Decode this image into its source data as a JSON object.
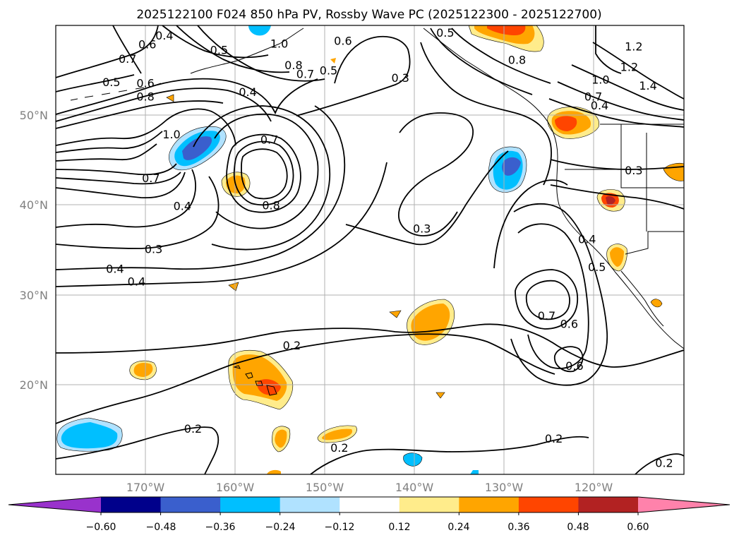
{
  "title": "2025122100 F024 850 hPa PV, Rossby Wave PC (2025122300 - 2025122700)",
  "map": {
    "lon_range": [
      -180,
      -110
    ],
    "lat_range": [
      10,
      60
    ],
    "lon_ticks": [
      {
        "lon": -170,
        "label": "170°W"
      },
      {
        "lon": -160,
        "label": "160°W"
      },
      {
        "lon": -150,
        "label": "150°W"
      },
      {
        "lon": -140,
        "label": "140°W"
      },
      {
        "lon": -130,
        "label": "130°W"
      },
      {
        "lon": -120,
        "label": "120°W"
      }
    ],
    "lat_ticks": [
      {
        "lat": 50,
        "label": "50°N"
      },
      {
        "lat": 40,
        "label": "40°N"
      },
      {
        "lat": 30,
        "label": "30°N"
      },
      {
        "lat": 20,
        "label": "20°N"
      }
    ],
    "grid": true
  },
  "colorbar": {
    "extend": "both",
    "ticks": [
      "−0.60",
      "−0.48",
      "−0.36",
      "−0.24",
      "−0.12",
      "0.12",
      "0.24",
      "0.36",
      "0.48",
      "0.60"
    ],
    "colors": [
      "#9932cc",
      "#00008b",
      "#3a5fcd",
      "#00bfff",
      "#b0e2ff",
      "#ffffff",
      "#ffec8b",
      "#ffa500",
      "#ff4500",
      "#b22222",
      "#ff82ab"
    ]
  },
  "contour_labels": [
    {
      "text": "0.4",
      "lon": -167.9,
      "lat": 58.9
    },
    {
      "text": "0.6",
      "lon": -169.8,
      "lat": 57.9
    },
    {
      "text": "0.7",
      "lon": -172.0,
      "lat": 56.3
    },
    {
      "text": "0.5",
      "lon": -173.8,
      "lat": 53.7
    },
    {
      "text": "0.6",
      "lon": -170.0,
      "lat": 53.6
    },
    {
      "text": "0.8",
      "lon": -170.0,
      "lat": 52.1
    },
    {
      "text": "0.5",
      "lon": -161.8,
      "lat": 57.3
    },
    {
      "text": "0.4",
      "lon": -158.6,
      "lat": 52.6
    },
    {
      "text": "1.0",
      "lon": -167.1,
      "lat": 47.9
    },
    {
      "text": "0.7",
      "lon": -169.4,
      "lat": 43.0
    },
    {
      "text": "0.4",
      "lon": -165.9,
      "lat": 39.9
    },
    {
      "text": "0.7",
      "lon": -156.2,
      "lat": 47.3
    },
    {
      "text": "0.8",
      "lon": -156.0,
      "lat": 40.0
    },
    {
      "text": "1.0",
      "lon": -155.1,
      "lat": 58.0
    },
    {
      "text": "0.8",
      "lon": -153.5,
      "lat": 55.6
    },
    {
      "text": "0.7",
      "lon": -152.2,
      "lat": 54.6
    },
    {
      "text": "0.5",
      "lon": -149.6,
      "lat": 55.0
    },
    {
      "text": "0.6",
      "lon": -148.0,
      "lat": 58.3
    },
    {
      "text": "0.3",
      "lon": -141.6,
      "lat": 54.2
    },
    {
      "text": "0.5",
      "lon": -136.6,
      "lat": 59.2
    },
    {
      "text": "0.8",
      "lon": -128.6,
      "lat": 56.2
    },
    {
      "text": "1.2",
      "lon": -115.6,
      "lat": 57.7
    },
    {
      "text": "1.2",
      "lon": -116.1,
      "lat": 55.4
    },
    {
      "text": "1.4",
      "lon": -114.0,
      "lat": 53.3
    },
    {
      "text": "1.0",
      "lon": -119.3,
      "lat": 54.0
    },
    {
      "text": "0.7",
      "lon": -120.1,
      "lat": 52.1
    },
    {
      "text": "0.4",
      "lon": -119.4,
      "lat": 51.1
    },
    {
      "text": "0.3",
      "lon": -115.6,
      "lat": 43.9
    },
    {
      "text": "0.3",
      "lon": -139.2,
      "lat": 37.4
    },
    {
      "text": "0.4",
      "lon": -120.8,
      "lat": 36.2
    },
    {
      "text": "0.5",
      "lon": -119.7,
      "lat": 33.1
    },
    {
      "text": "0.3",
      "lon": -169.1,
      "lat": 35.1
    },
    {
      "text": "0.4",
      "lon": -173.4,
      "lat": 32.9
    },
    {
      "text": "0.4",
      "lon": -171.0,
      "lat": 31.5
    },
    {
      "text": "0.7",
      "lon": -125.3,
      "lat": 27.7
    },
    {
      "text": "0.6",
      "lon": -122.8,
      "lat": 26.8
    },
    {
      "text": "0.6",
      "lon": -122.2,
      "lat": 22.1
    },
    {
      "text": "0.2",
      "lon": -153.7,
      "lat": 24.4
    },
    {
      "text": "0.2",
      "lon": -164.7,
      "lat": 15.1
    },
    {
      "text": "0.2",
      "lon": -148.4,
      "lat": 13.0
    },
    {
      "text": "0.2",
      "lon": -124.5,
      "lat": 14.0
    },
    {
      "text": "0.2",
      "lon": -112.2,
      "lat": 11.3
    }
  ]
}
